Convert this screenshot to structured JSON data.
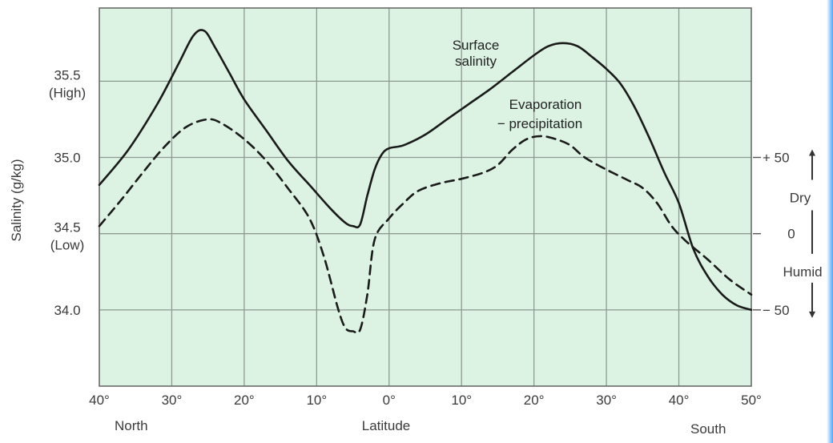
{
  "chart_data": {
    "type": "line",
    "xlabel": "Latitude",
    "x_ticks": [
      "40°",
      "30°",
      "20°",
      "10°",
      "0°",
      "10°",
      "20°",
      "30°",
      "40°",
      "50°"
    ],
    "x_tick_values": [
      -40,
      -30,
      -20,
      -10,
      0,
      10,
      20,
      30,
      40,
      50
    ],
    "x_end_labels": {
      "left": "North",
      "right": "South"
    },
    "xlim": [
      -40,
      50
    ],
    "ylabel": "Salinity (g/kg)",
    "ylim": [
      33.5,
      35.98
    ],
    "y_ticks": [
      {
        "value": 35.5,
        "label": "35.5",
        "sub": "(High)"
      },
      {
        "value": 35.0,
        "label": "35.0",
        "sub": ""
      },
      {
        "value": 34.5,
        "label": "34.5",
        "sub": "(Low)"
      },
      {
        "value": 34.0,
        "label": "34.0",
        "sub": ""
      }
    ],
    "y2": {
      "ticks": [
        {
          "value": 35.0,
          "label": "+ 50"
        },
        {
          "value": 34.5,
          "label": "0"
        },
        {
          "value": 34.0,
          "label": "− 50"
        }
      ],
      "labels": {
        "top": "Dry",
        "bottom": "Humid"
      }
    },
    "grid": true,
    "background": "#dcf3e4",
    "series": [
      {
        "name": "Surface salinity",
        "label_lines": [
          "Surface",
          "salinity"
        ],
        "style": "solid",
        "color": "#1a1a1a",
        "points": [
          [
            -40,
            34.82
          ],
          [
            -36,
            35.05
          ],
          [
            -32,
            35.35
          ],
          [
            -29,
            35.62
          ],
          [
            -27,
            35.8
          ],
          [
            -25.5,
            35.83
          ],
          [
            -24,
            35.72
          ],
          [
            -22,
            35.55
          ],
          [
            -20,
            35.38
          ],
          [
            -17,
            35.18
          ],
          [
            -14,
            34.98
          ],
          [
            -11,
            34.82
          ],
          [
            -8,
            34.66
          ],
          [
            -6,
            34.57
          ],
          [
            -5,
            34.55
          ],
          [
            -4,
            34.56
          ],
          [
            -3,
            34.75
          ],
          [
            -2,
            34.92
          ],
          [
            -1,
            35.02
          ],
          [
            0,
            35.06
          ],
          [
            2,
            35.08
          ],
          [
            5,
            35.15
          ],
          [
            8,
            35.25
          ],
          [
            11,
            35.35
          ],
          [
            14,
            35.45
          ],
          [
            17,
            35.56
          ],
          [
            20,
            35.67
          ],
          [
            22,
            35.73
          ],
          [
            24,
            35.75
          ],
          [
            26,
            35.73
          ],
          [
            28,
            35.66
          ],
          [
            30,
            35.58
          ],
          [
            32,
            35.48
          ],
          [
            34,
            35.32
          ],
          [
            36,
            35.12
          ],
          [
            38,
            34.9
          ],
          [
            40,
            34.7
          ],
          [
            42,
            34.4
          ],
          [
            44,
            34.22
          ],
          [
            46,
            34.1
          ],
          [
            48,
            34.03
          ],
          [
            50,
            34.0
          ]
        ]
      },
      {
        "name": "Evaporation − precipitation",
        "label_lines": [
          "Evaporation",
          "− precipitation"
        ],
        "style": "dashed",
        "color": "#1a1a1a",
        "points": [
          [
            -40,
            34.55
          ],
          [
            -37,
            34.72
          ],
          [
            -34,
            34.9
          ],
          [
            -31,
            35.07
          ],
          [
            -28,
            35.2
          ],
          [
            -25,
            35.25
          ],
          [
            -23,
            35.22
          ],
          [
            -20,
            35.12
          ],
          [
            -17,
            34.98
          ],
          [
            -14,
            34.8
          ],
          [
            -11,
            34.6
          ],
          [
            -9,
            34.35
          ],
          [
            -7,
            34.0
          ],
          [
            -6,
            33.88
          ],
          [
            -5,
            33.86
          ],
          [
            -4,
            33.87
          ],
          [
            -3,
            34.1
          ],
          [
            -2,
            34.46
          ],
          [
            0,
            34.6
          ],
          [
            2,
            34.7
          ],
          [
            4,
            34.78
          ],
          [
            7,
            34.83
          ],
          [
            10,
            34.86
          ],
          [
            13,
            34.9
          ],
          [
            15,
            34.95
          ],
          [
            17,
            35.05
          ],
          [
            19,
            35.12
          ],
          [
            21,
            35.14
          ],
          [
            23,
            35.12
          ],
          [
            25,
            35.08
          ],
          [
            27,
            35.0
          ],
          [
            30,
            34.92
          ],
          [
            33,
            34.85
          ],
          [
            35,
            34.8
          ],
          [
            37,
            34.7
          ],
          [
            39,
            34.55
          ],
          [
            41,
            34.45
          ],
          [
            44,
            34.33
          ],
          [
            47,
            34.2
          ],
          [
            50,
            34.1
          ]
        ]
      }
    ]
  }
}
